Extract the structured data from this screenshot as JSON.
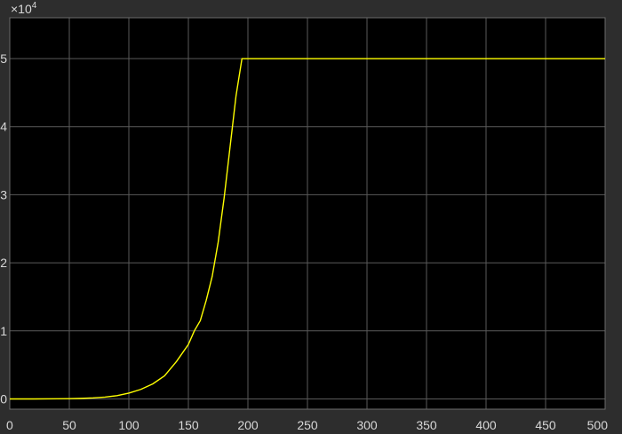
{
  "chart_data": {
    "type": "line",
    "title": "",
    "xlabel": "",
    "ylabel": "",
    "xlim": [
      0,
      500
    ],
    "ylim": [
      -0.15,
      5.6
    ],
    "y_multiplier": "×10",
    "y_multiplier_exp": "4",
    "grid": true,
    "colors": {
      "figure_bg": "#2d2d2d",
      "axes_bg": "#000000",
      "grid": "#5a5a5a",
      "tick_text": "#d8d8d8",
      "line": "#ffff00"
    },
    "x_ticks": [
      {
        "value": 0,
        "label": "0"
      },
      {
        "value": 50,
        "label": "50"
      },
      {
        "value": 100,
        "label": "100"
      },
      {
        "value": 150,
        "label": "150"
      },
      {
        "value": 200,
        "label": "200"
      },
      {
        "value": 250,
        "label": "250"
      },
      {
        "value": 300,
        "label": "300"
      },
      {
        "value": 350,
        "label": "350"
      },
      {
        "value": 400,
        "label": "400"
      },
      {
        "value": 450,
        "label": "450"
      },
      {
        "value": 500,
        "label": "500"
      }
    ],
    "y_ticks": [
      {
        "value": 0,
        "label": "0"
      },
      {
        "value": 1,
        "label": "1"
      },
      {
        "value": 2,
        "label": "2"
      },
      {
        "value": 3,
        "label": "3"
      },
      {
        "value": 4,
        "label": "4"
      },
      {
        "value": 5,
        "label": "5"
      }
    ],
    "series": [
      {
        "x": [
          0,
          20,
          40,
          50,
          60,
          70,
          80,
          90,
          100,
          110,
          120,
          130,
          140,
          150,
          155,
          160,
          165,
          170,
          175,
          180,
          185,
          190,
          195,
          200,
          250,
          300,
          350,
          400,
          450,
          500
        ],
        "y": [
          0,
          0,
          0.002,
          0.004,
          0.008,
          0.015,
          0.027,
          0.048,
          0.085,
          0.14,
          0.22,
          0.34,
          0.55,
          0.8,
          1.0,
          1.15,
          1.45,
          1.8,
          2.3,
          2.95,
          3.7,
          4.45,
          5.0,
          5.0,
          5.0,
          5.0,
          5.0,
          5.0,
          5.0,
          5.0
        ]
      }
    ]
  }
}
